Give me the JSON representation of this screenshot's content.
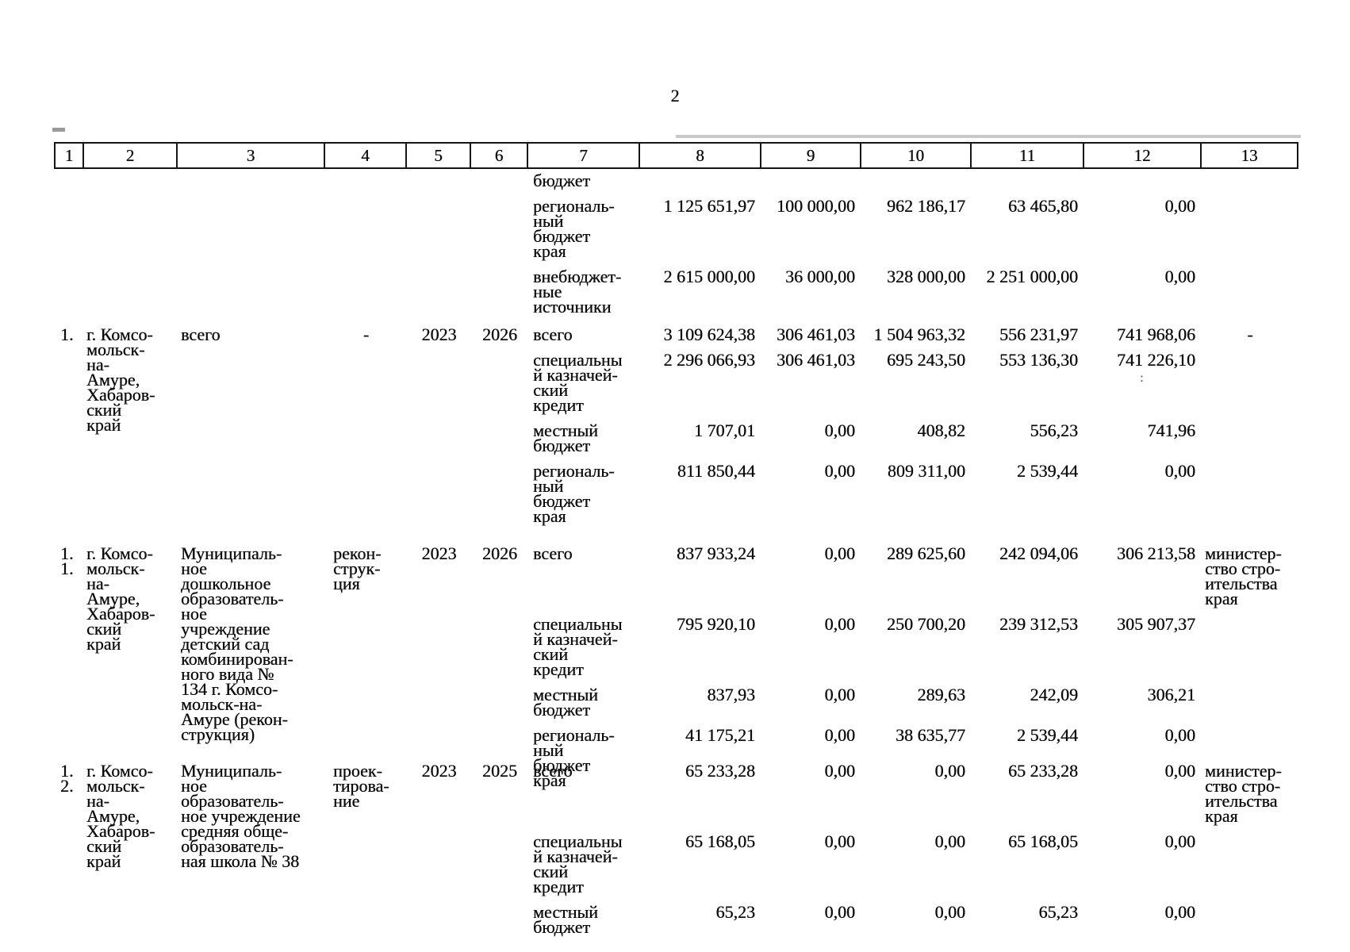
{
  "page": {
    "number": "2"
  },
  "table": {
    "header_cells": [
      "1",
      "2",
      "3",
      "4",
      "5",
      "6",
      "7",
      "8",
      "9",
      "10",
      "11",
      "12",
      "13"
    ],
    "rows": [
      {
        "num": "",
        "territory": "",
        "object_name": "",
        "work_type": "",
        "year_start": "",
        "year_end": "",
        "lines": [
          {
            "label": "бюджет",
            "values": [
              "",
              "",
              "",
              "",
              ""
            ],
            "executor": ""
          },
          {
            "label": "региональ-\nный\nбюджет\nкрая",
            "values": [
              "1 125 651,97",
              "100 000,00",
              "962 186,17",
              "63 465,80",
              "0,00"
            ],
            "executor": ""
          },
          {
            "label": "внебюджет-\nные\nисточники",
            "values": [
              "2 615 000,00",
              "36 000,00",
              "328 000,00",
              "2 251 000,00",
              "0,00"
            ],
            "executor": ""
          }
        ]
      },
      {
        "num": "1.",
        "territory": "г. Комсо-\nмольск-\nна-\nАмуре,\nХабаров-\nский\nкрай",
        "object_name": "всего",
        "work_type": "-",
        "year_start": "2023",
        "year_end": "2026",
        "lines": [
          {
            "label": "всего",
            "values": [
              "3 109 624,38",
              "306 461,03",
              "1 504 963,32",
              "556 231,97",
              "741 968,06"
            ],
            "executor": "-"
          },
          {
            "label": "специальны\nй казначей-\nский\nкредит",
            "values": [
              "2 296 066,93",
              "306 461,03",
              "695 243,50",
              "553 136,30",
              "741 226,10"
            ],
            "executor": ""
          },
          {
            "label": "местный\nбюджет",
            "values": [
              "1 707,01",
              "0,00",
              "408,82",
              "556,23",
              "741,96"
            ],
            "executor": ""
          },
          {
            "label": "региональ-\nный\nбюджет\nкрая",
            "values": [
              "811 850,44",
              "0,00",
              "809 311,00",
              "2 539,44",
              "0,00"
            ],
            "executor": ""
          }
        ]
      },
      {
        "num": "1.\n1.",
        "territory": "г. Комсо-\nмольск-\nна-\nАмуре,\nХабаров-\nский\nкрай",
        "object_name": "Муниципаль-\nное\nдошкольное\nобразователь-\nное\nучреждение\nдетский сад\nкомбинирован-\nного вида №\n134 г. Комсо-\nмольск-на-\nАмуре (рекон-\nструкция)",
        "work_type": "рекон-\nструк-\nция",
        "year_start": "2023",
        "year_end": "2026",
        "lines": [
          {
            "label": "всего",
            "values": [
              "837 933,24",
              "0,00",
              "289 625,60",
              "242 094,06",
              "306 213,58"
            ],
            "executor": "министер-\nство стро-\nительства\nкрая"
          },
          {
            "label": "специальны\nй казначей-\nский\nкредит",
            "values": [
              "795 920,10",
              "0,00",
              "250 700,20",
              "239 312,53",
              "305 907,37"
            ],
            "executor": ""
          },
          {
            "label": "местный\nбюджет",
            "values": [
              "837,93",
              "0,00",
              "289,63",
              "242,09",
              "306,21"
            ],
            "executor": ""
          },
          {
            "label": "региональ-\nный\nбюджет\nкрая",
            "values": [
              "41 175,21",
              "0,00",
              "38 635,77",
              "2 539,44",
              "0,00"
            ],
            "executor": ""
          }
        ]
      },
      {
        "num": "1.\n2.",
        "territory": "г. Комсо-\nмольск-\nна-\nАмуре,\nХабаров-\nский\nкрай",
        "object_name": "Муниципаль-\nное\nобразователь-\nное учреждение\nсредняя обще-\nобразователь-\nная школа № 38",
        "work_type": "проек-\nтирова-\nние",
        "year_start": "2023",
        "year_end": "2025",
        "lines": [
          {
            "label": "всего",
            "values": [
              "65 233,28",
              "0,00",
              "0,00",
              "65 233,28",
              "0,00"
            ],
            "executor": "министер-\nство стро-\nительства\nкрая"
          },
          {
            "label": "специальны\nй казначей-\nский\nкредит",
            "values": [
              "65 168,05",
              "0,00",
              "0,00",
              "65 168,05",
              "0,00"
            ],
            "executor": ""
          },
          {
            "label": "местный\nбюджет",
            "values": [
              "65,23",
              "0,00",
              "0,00",
              "65,23",
              "0,00"
            ],
            "executor": ""
          }
        ]
      }
    ]
  }
}
